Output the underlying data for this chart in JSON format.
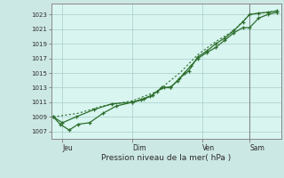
{
  "bg_color": "#cce8e4",
  "plot_bg_color": "#d8f5f0",
  "grid_color": "#aacccc",
  "line_color": "#2d6e2d",
  "axis_color": "#888888",
  "ylabel_values": [
    1007,
    1009,
    1011,
    1013,
    1015,
    1017,
    1019,
    1021,
    1023
  ],
  "ylim": [
    1006.0,
    1024.5
  ],
  "xtick_labels": [
    "Jeu",
    "Dim",
    "Ven",
    "Sam"
  ],
  "xtick_positions": [
    0.04,
    0.35,
    0.66,
    0.87
  ],
  "xlabel": "Pression niveau de la mer( hPa )",
  "series1_x": [
    0.0,
    0.03,
    0.07,
    0.11,
    0.16,
    0.22,
    0.28,
    0.35,
    0.39,
    0.43,
    0.46,
    0.49,
    0.52,
    0.55,
    0.58,
    0.61,
    0.64,
    0.68,
    0.72,
    0.76,
    0.8,
    0.84,
    0.87,
    0.91,
    0.95,
    0.99
  ],
  "series1_y": [
    1009.0,
    1008.0,
    1007.2,
    1008.0,
    1008.2,
    1009.5,
    1010.5,
    1011.0,
    1011.3,
    1011.8,
    1012.5,
    1013.0,
    1013.1,
    1013.9,
    1015.0,
    1016.0,
    1017.0,
    1017.8,
    1018.5,
    1019.5,
    1020.5,
    1021.2,
    1021.2,
    1022.5,
    1023.0,
    1023.3
  ],
  "series2_x": [
    0.0,
    0.04,
    0.1,
    0.18,
    0.26,
    0.35,
    0.4,
    0.44,
    0.48,
    0.52,
    0.56,
    0.6,
    0.64,
    0.68,
    0.72,
    0.76,
    0.8,
    0.84,
    0.87,
    0.91,
    0.95,
    0.99
  ],
  "series2_y": [
    1009.0,
    1008.2,
    1009.0,
    1010.0,
    1010.8,
    1011.0,
    1011.5,
    1012.0,
    1013.0,
    1013.0,
    1014.3,
    1015.3,
    1017.2,
    1018.0,
    1019.0,
    1019.8,
    1020.8,
    1022.0,
    1023.0,
    1023.2,
    1023.3,
    1023.5
  ],
  "series3_x": [
    0.0,
    0.11,
    0.22,
    0.35,
    0.46,
    0.56,
    0.64,
    0.72,
    0.8,
    0.87,
    0.95,
    0.99
  ],
  "series3_y": [
    1009.0,
    1009.5,
    1010.5,
    1011.2,
    1012.5,
    1015.0,
    1017.5,
    1019.3,
    1020.8,
    1023.0,
    1023.3,
    1023.5
  ],
  "vline_x": 0.87
}
